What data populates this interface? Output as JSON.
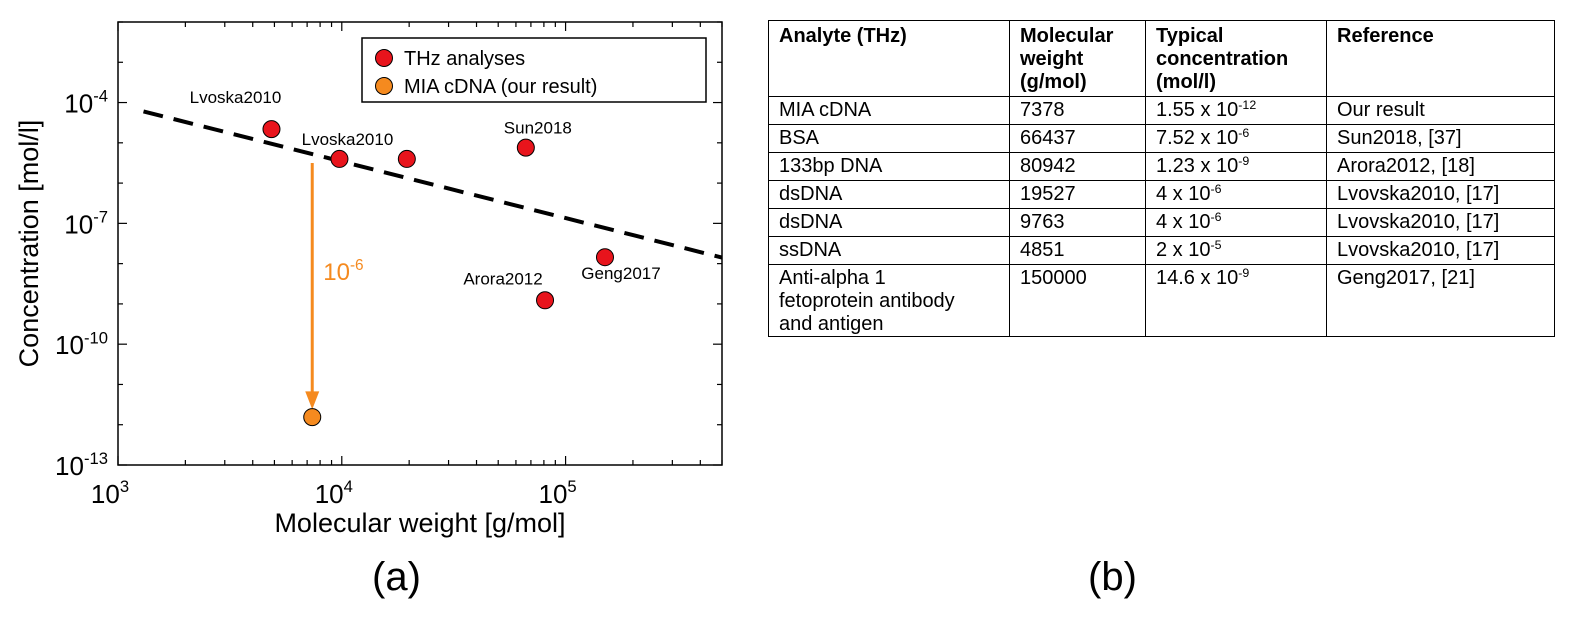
{
  "chart_data": {
    "type": "scatter",
    "xscale": "log",
    "yscale": "log",
    "xlim": [
      1000,
      500000
    ],
    "ylim_exp": [
      -13,
      -2
    ],
    "xlabel": "Molecular weight [g/mol]",
    "ylabel": "Concentration [mol/l]",
    "x_ticks": [
      {
        "base": "10",
        "exp": "3",
        "value": 1000
      },
      {
        "base": "10",
        "exp": "4",
        "value": 10000
      },
      {
        "base": "10",
        "exp": "5",
        "value": 100000
      }
    ],
    "y_ticks": [
      {
        "base": "10",
        "exp": "-4",
        "value": -4
      },
      {
        "base": "10",
        "exp": "-7",
        "value": -7
      },
      {
        "base": "10",
        "exp": "-10",
        "value": -10
      },
      {
        "base": "10",
        "exp": "-13",
        "value": -13
      }
    ],
    "legend": [
      {
        "label": "THz analyses",
        "color": "#e8141c"
      },
      {
        "label": "MIA cDNA (our result)",
        "color": "#f58a1f"
      }
    ],
    "series": [
      {
        "name": "THz analyses",
        "color": "#e8141c",
        "points": [
          {
            "x": 4851,
            "y_exp": -4.66,
            "label": "Lvoska2010"
          },
          {
            "x": 9763,
            "y_exp": -5.4,
            "label": "Lvoska2010"
          },
          {
            "x": 19527,
            "y_exp": -5.4,
            "label": ""
          },
          {
            "x": 66437,
            "y_exp": -5.12,
            "label": "Sun2018"
          },
          {
            "x": 80942,
            "y_exp": -8.91,
            "label": "Arora2012"
          },
          {
            "x": 150000,
            "y_exp": -7.84,
            "label": "Geng2017"
          }
        ]
      },
      {
        "name": "MIA cDNA (our result)",
        "color": "#f58a1f",
        "points": [
          {
            "x": 7378,
            "y_exp": -11.81,
            "label": ""
          }
        ]
      }
    ],
    "trend_line": {
      "style": "dashed",
      "color": "#000000",
      "from": {
        "x": 1300,
        "y_exp": -4.22
      },
      "to": {
        "x": 500000,
        "y_exp": -7.85
      }
    },
    "annotation": {
      "base": "10",
      "exp": "-6",
      "color": "#f58a1f",
      "arrow_x": 7378,
      "from_y_exp": -5.5,
      "to_y_exp": -11.62
    }
  },
  "panel_labels": {
    "a": "(a)",
    "b": "(b)"
  },
  "table": {
    "headers": [
      {
        "line1": "Analyte (THz)",
        "line2": "",
        "line3": ""
      },
      {
        "line1": "Molecular",
        "line2": "weight",
        "line3": "(g/mol)"
      },
      {
        "line1": "Typical",
        "line2": "concentration",
        "line3": "(mol/l)"
      },
      {
        "line1": "Reference",
        "line2": "",
        "line3": ""
      }
    ],
    "rows": [
      {
        "analyte": "MIA cDNA",
        "weight": "7378",
        "conc_base": "1.55 x 10",
        "conc_exp": "-12",
        "reference": "Our result"
      },
      {
        "analyte": "BSA",
        "weight": "66437",
        "conc_base": "7.52 x 10",
        "conc_exp": "-6",
        "reference": "Sun2018, [37]"
      },
      {
        "analyte": "133bp DNA",
        "weight": "80942",
        "conc_base": "1.23 x 10",
        "conc_exp": "-9",
        "reference": "Arora2012, [18]"
      },
      {
        "analyte": "dsDNA",
        "weight": "19527",
        "conc_base": "4 x 10",
        "conc_exp": "-6",
        "reference": "Lvovska2010, [17]"
      },
      {
        "analyte": "dsDNA",
        "weight": "9763",
        "conc_base": "4 x 10",
        "conc_exp": "-6",
        "reference": "Lvovska2010, [17]"
      },
      {
        "analyte": "ssDNA",
        "weight": "4851",
        "conc_base": "2 x 10",
        "conc_exp": "-5",
        "reference": "Lvovska2010, [17]"
      }
    ],
    "last_row": {
      "analyte_lines": [
        "Anti-alpha 1",
        "fetoprotein antibody",
        "and antigen"
      ],
      "weight": "150000",
      "conc_base": "14.6 x 10",
      "conc_exp": "-9",
      "reference": "Geng2017, [21]"
    }
  }
}
